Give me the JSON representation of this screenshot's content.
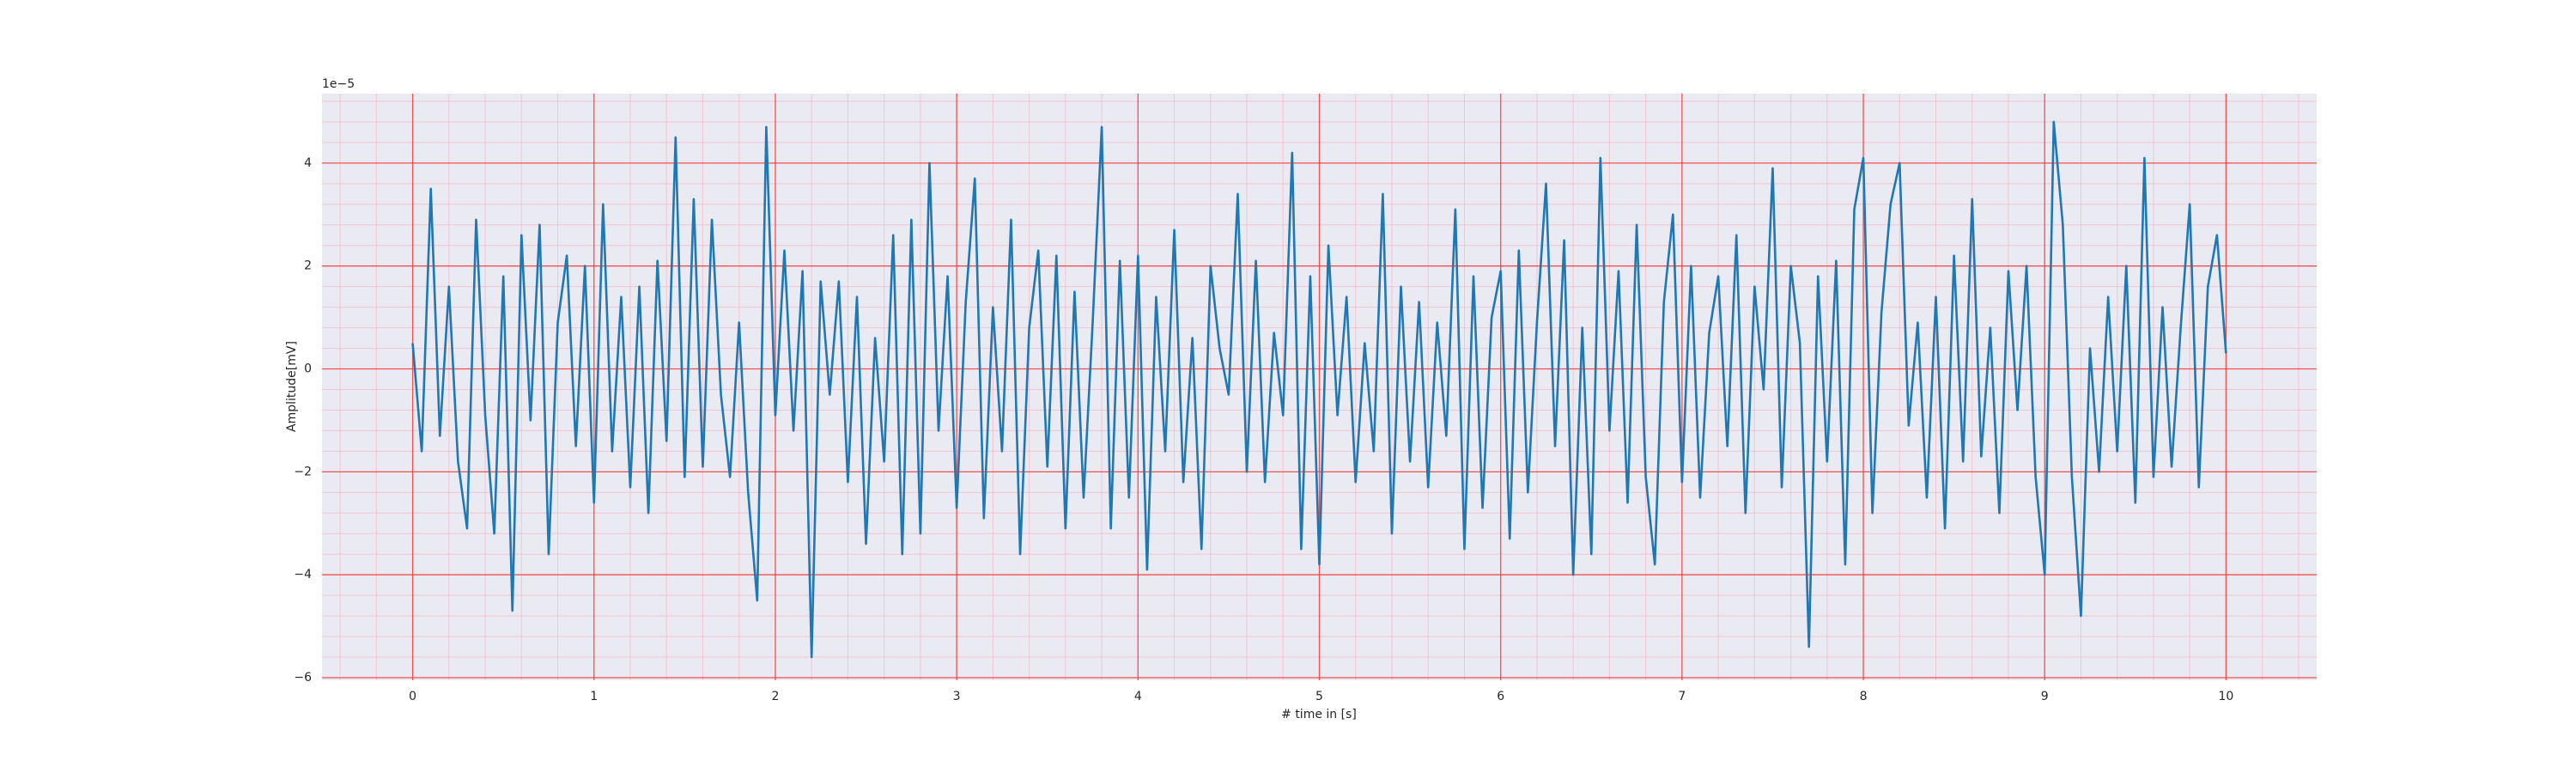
{
  "chart_data": {
    "type": "line",
    "x_label": "# time in [s]",
    "y_label": "Amplitude[mV]",
    "y_offset_text": "1e−5",
    "color": "#1f77b4",
    "grid": true,
    "minor_grid": true,
    "xlim": [
      -0.5,
      10.5
    ],
    "ylim": [
      -6.05,
      5.35
    ],
    "xticks": [
      0,
      1,
      2,
      3,
      4,
      5,
      6,
      7,
      8,
      9,
      10
    ],
    "yticks": [
      {
        "value": -6,
        "label": "−6"
      },
      {
        "value": -4,
        "label": "−4"
      },
      {
        "value": -2,
        "label": "−2"
      },
      0,
      2,
      4
    ],
    "x": [
      0.0,
      0.05,
      0.1,
      0.15,
      0.2,
      0.25,
      0.3,
      0.35,
      0.4,
      0.45,
      0.5,
      0.55,
      0.6,
      0.65,
      0.7,
      0.75,
      0.8,
      0.85,
      0.9,
      0.95,
      1.0,
      1.05,
      1.1,
      1.15,
      1.2,
      1.25,
      1.3,
      1.35,
      1.4,
      1.45,
      1.5,
      1.55,
      1.6,
      1.65,
      1.7,
      1.75,
      1.8,
      1.85,
      1.9,
      1.95,
      2.0,
      2.05,
      2.1,
      2.15,
      2.2,
      2.25,
      2.3,
      2.35,
      2.4,
      2.45,
      2.5,
      2.55,
      2.6,
      2.65,
      2.7,
      2.75,
      2.8,
      2.85,
      2.9,
      2.95,
      3.0,
      3.05,
      3.1,
      3.15,
      3.2,
      3.25,
      3.3,
      3.35,
      3.4,
      3.45,
      3.5,
      3.55,
      3.6,
      3.65,
      3.7,
      3.75,
      3.8,
      3.85,
      3.9,
      3.95,
      4.0,
      4.05,
      4.1,
      4.15,
      4.2,
      4.25,
      4.3,
      4.35,
      4.4,
      4.45,
      4.5,
      4.55,
      4.6,
      4.65,
      4.7,
      4.75,
      4.8,
      4.85,
      4.9,
      4.95,
      5.0,
      5.05,
      5.1,
      5.15,
      5.2,
      5.25,
      5.3,
      5.35,
      5.4,
      5.45,
      5.5,
      5.55,
      5.6,
      5.65,
      5.7,
      5.75,
      5.8,
      5.85,
      5.9,
      5.95,
      6.0,
      6.05,
      6.1,
      6.15,
      6.2,
      6.25,
      6.3,
      6.35,
      6.4,
      6.45,
      6.5,
      6.55,
      6.6,
      6.65,
      6.7,
      6.75,
      6.8,
      6.85,
      6.9,
      6.95,
      7.0,
      7.05,
      7.1,
      7.15,
      7.2,
      7.25,
      7.3,
      7.35,
      7.4,
      7.45,
      7.5,
      7.55,
      7.6,
      7.65,
      7.7,
      7.75,
      7.8,
      7.85,
      7.9,
      7.95,
      8.0,
      8.05,
      8.1,
      8.15,
      8.2,
      8.25,
      8.3,
      8.35,
      8.4,
      8.45,
      8.5,
      8.55,
      8.6,
      8.65,
      8.7,
      8.75,
      8.8,
      8.85,
      8.9,
      8.95,
      9.0,
      9.05,
      9.1,
      9.15,
      9.2,
      9.25,
      9.3,
      9.35,
      9.4,
      9.45,
      9.5,
      9.55,
      9.6,
      9.65,
      9.7,
      9.75,
      9.8,
      9.85,
      9.9,
      9.95,
      10.0
    ],
    "values": [
      0.5,
      -1.6,
      3.5,
      -1.3,
      1.6,
      -1.8,
      -3.1,
      2.9,
      -0.9,
      -3.2,
      1.8,
      -4.7,
      2.6,
      -1.0,
      2.8,
      -3.6,
      0.9,
      2.2,
      -1.5,
      2.0,
      -2.6,
      3.2,
      -1.6,
      1.4,
      -2.3,
      1.6,
      -2.8,
      2.1,
      -1.4,
      4.5,
      -2.1,
      3.3,
      -1.9,
      2.9,
      -0.5,
      -2.1,
      0.9,
      -2.4,
      -4.5,
      4.7,
      -0.9,
      2.3,
      -1.2,
      1.9,
      -5.6,
      1.7,
      -0.5,
      1.7,
      -2.2,
      1.4,
      -3.4,
      0.6,
      -1.8,
      2.6,
      -3.6,
      2.9,
      -3.2,
      4.0,
      -1.2,
      1.8,
      -2.7,
      1.3,
      3.7,
      -2.9,
      1.2,
      -1.6,
      2.9,
      -3.6,
      0.8,
      2.3,
      -1.9,
      2.2,
      -3.1,
      1.5,
      -2.5,
      0.9,
      4.7,
      -3.1,
      2.1,
      -2.5,
      2.2,
      -3.9,
      1.4,
      -1.6,
      2.7,
      -2.2,
      0.6,
      -3.5,
      2.0,
      0.4,
      -0.5,
      3.4,
      -2.0,
      2.1,
      -2.2,
      0.7,
      -0.9,
      4.2,
      -3.5,
      1.8,
      -3.8,
      2.4,
      -0.9,
      1.4,
      -2.2,
      0.5,
      -1.6,
      3.4,
      -3.2,
      1.6,
      -1.8,
      1.3,
      -2.3,
      0.9,
      -1.3,
      3.1,
      -3.5,
      1.8,
      -2.7,
      1.0,
      1.9,
      -3.3,
      2.3,
      -2.4,
      0.9,
      3.6,
      -1.5,
      2.5,
      -4.0,
      0.8,
      -3.6,
      4.1,
      -1.2,
      1.9,
      -2.6,
      2.8,
      -2.1,
      -3.8,
      1.3,
      3.0,
      -2.2,
      2.0,
      -2.5,
      0.7,
      1.8,
      -1.5,
      2.6,
      -2.8,
      1.6,
      -0.4,
      3.9,
      -2.3,
      2.0,
      0.5,
      -5.4,
      1.8,
      -1.8,
      2.1,
      -3.8,
      3.1,
      4.1,
      -2.8,
      1.1,
      3.2,
      4.0,
      -1.1,
      0.9,
      -2.5,
      1.4,
      -3.1,
      2.2,
      -1.8,
      3.3,
      -1.7,
      0.8,
      -2.8,
      1.9,
      -0.8,
      2.0,
      -2.1,
      -4.0,
      4.8,
      2.8,
      -2.1,
      -4.8,
      0.4,
      -2.0,
      1.4,
      -1.6,
      2.0,
      -2.6,
      4.1,
      -2.1,
      1.2,
      -1.9,
      0.8,
      3.2,
      -2.3,
      1.6,
      2.6,
      0.3
    ]
  }
}
